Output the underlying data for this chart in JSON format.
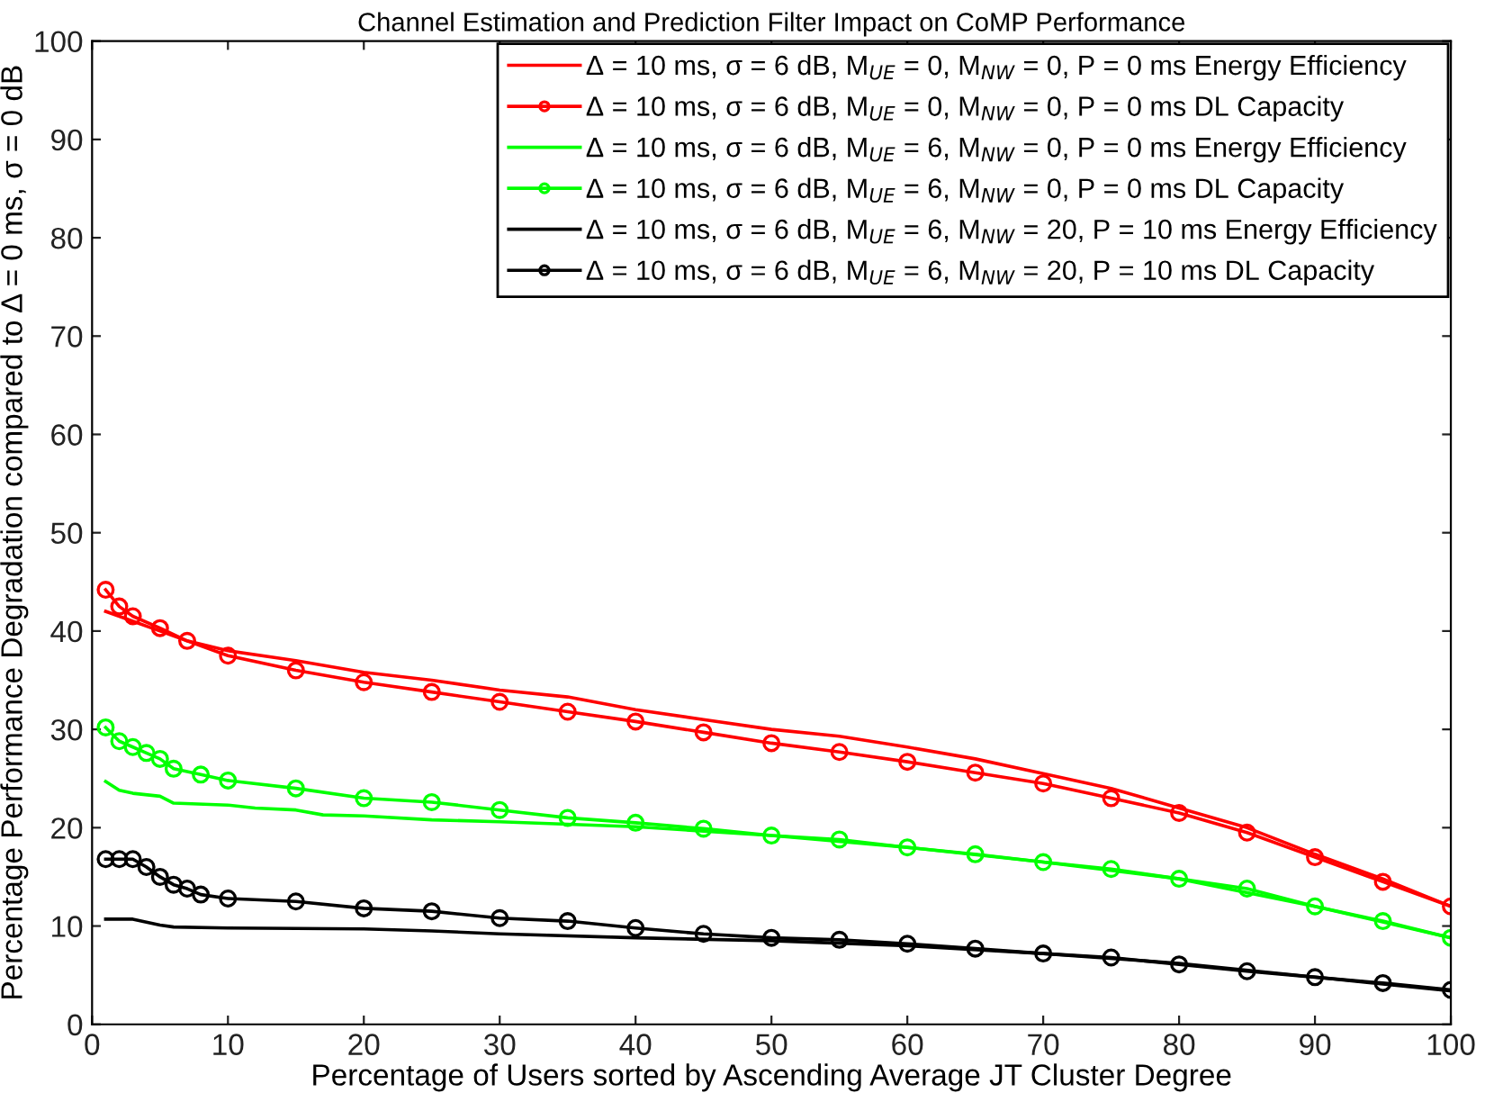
{
  "chart_data": {
    "type": "line",
    "title": "Channel Estimation and Prediction Filter Impact on CoMP Performance",
    "xlabel": "Percentage of Users sorted by Ascending Average JT Cluster Degree",
    "ylabel": "Percentage Performance Degradation compared to Δ = 0 ms, σ = 0 dB",
    "xlim": [
      0,
      100
    ],
    "xticks": [
      0,
      10,
      20,
      30,
      40,
      50,
      60,
      70,
      80,
      90,
      100
    ],
    "ylim": [
      0,
      100
    ],
    "yticks": [
      0,
      10,
      20,
      30,
      40,
      50,
      60,
      70,
      80,
      90,
      100
    ],
    "grid": false,
    "legend": "top right",
    "series": [
      {
        "name": "Δ = 10 ms, σ = 6 dB, M$_{UE}$ = 0, M$_{NW}$ = 0, P = 0 ms Energy Efficiency",
        "color": "#ff0000",
        "marker": "none",
        "x": [
          1,
          2,
          3,
          5,
          7,
          10,
          15,
          20,
          25,
          30,
          35,
          40,
          45,
          50,
          55,
          60,
          65,
          70,
          75,
          80,
          85,
          90,
          95,
          100
        ],
        "values": [
          42,
          41.5,
          41,
          40,
          39,
          38,
          37,
          35.8,
          35,
          34,
          33.3,
          32,
          31,
          30,
          29.3,
          28.2,
          27,
          25.5,
          24,
          22,
          20,
          17.3,
          14.8,
          12
        ]
      },
      {
        "name": "Δ = 10 ms, σ = 6 dB, M$_{UE}$ = 0, M$_{NW}$ = 0, P = 0 ms DL Capacity",
        "color": "#ff0000",
        "marker": "circle",
        "x": [
          1,
          2,
          3,
          5,
          7,
          10,
          15,
          20,
          25,
          30,
          35,
          40,
          45,
          50,
          55,
          60,
          65,
          70,
          75,
          80,
          85,
          90,
          95,
          100
        ],
        "values": [
          44.2,
          42.5,
          41.5,
          40.3,
          39,
          37.5,
          36,
          34.8,
          33.8,
          32.8,
          31.8,
          30.8,
          29.7,
          28.6,
          27.7,
          26.7,
          25.6,
          24.5,
          23,
          21.5,
          19.5,
          17,
          14.5,
          12
        ]
      },
      {
        "name": "Δ = 10 ms, σ = 6 dB, M$_{UE}$ = 6, M$_{NW}$ = 0, P = 0 ms Energy Efficiency",
        "color": "#00ff00",
        "marker": "none",
        "x": [
          1,
          2,
          3,
          5,
          6,
          10,
          12,
          15,
          17,
          20,
          25,
          30,
          40,
          50,
          60,
          70,
          80,
          90,
          100
        ],
        "values": [
          24.7,
          23.8,
          23.5,
          23.2,
          22.5,
          22.3,
          22,
          21.8,
          21.3,
          21.2,
          20.8,
          20.6,
          20.1,
          19.2,
          18,
          16.5,
          14.8,
          12,
          8.8
        ]
      },
      {
        "name": "Δ = 10 ms, σ = 6 dB, M$_{UE}$ = 6, M$_{NW}$ = 0, P = 0 ms DL Capacity",
        "color": "#00ff00",
        "marker": "circle",
        "x": [
          1,
          2,
          3,
          4,
          5,
          6,
          8,
          10,
          15,
          20,
          25,
          30,
          35,
          40,
          45,
          50,
          55,
          60,
          65,
          70,
          75,
          80,
          85,
          90,
          95,
          100
        ],
        "values": [
          30.2,
          28.8,
          28.2,
          27.6,
          27,
          26,
          25.4,
          24.8,
          24,
          23,
          22.6,
          21.8,
          21,
          20.5,
          19.9,
          19.2,
          18.8,
          18,
          17.3,
          16.5,
          15.8,
          14.8,
          13.8,
          12,
          10.5,
          8.8
        ]
      },
      {
        "name": "Δ = 10 ms, σ = 6 dB, M$_{UE}$ = 6, M$_{NW}$ = 20, P = 10 ms Energy Efficiency",
        "color": "#000000",
        "marker": "none",
        "x": [
          1,
          3,
          5,
          6,
          10,
          20,
          25,
          30,
          40,
          50,
          60,
          70,
          80,
          90,
          100
        ],
        "values": [
          10.7,
          10.7,
          10.1,
          9.9,
          9.8,
          9.7,
          9.5,
          9.2,
          8.8,
          8.5,
          8,
          7.2,
          6.2,
          4.8,
          3.4
        ]
      },
      {
        "name": "Δ = 10 ms, σ = 6 dB, M$_{UE}$ = 6, M$_{NW}$ = 20, P = 10 ms DL Capacity",
        "color": "#000000",
        "marker": "circle",
        "x": [
          1,
          2,
          3,
          4,
          5,
          6,
          7,
          8,
          10,
          15,
          20,
          25,
          30,
          35,
          40,
          45,
          50,
          55,
          60,
          65,
          70,
          75,
          80,
          85,
          90,
          95,
          100
        ],
        "values": [
          16.8,
          16.8,
          16.8,
          16,
          15,
          14.2,
          13.8,
          13.2,
          12.8,
          12.5,
          11.8,
          11.5,
          10.8,
          10.5,
          9.8,
          9.2,
          8.8,
          8.6,
          8.2,
          7.7,
          7.2,
          6.8,
          6.1,
          5.4,
          4.8,
          4.2,
          3.5
        ]
      }
    ]
  }
}
